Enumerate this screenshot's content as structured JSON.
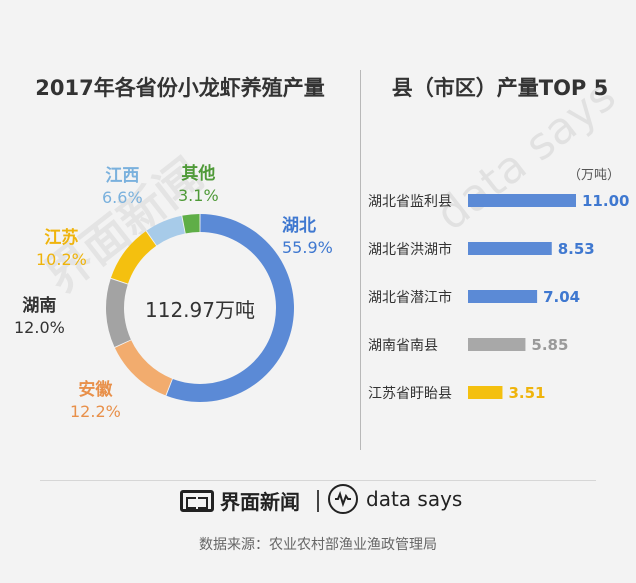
{
  "left": {
    "title": "2017年各省份小龙虾养殖产量"
  },
  "right": {
    "title": "县（市区）产量TOP 5",
    "unit": "（万吨）"
  },
  "donut_total": "112.97万吨",
  "colors": {
    "湖北": "#5b8ad6",
    "安徽": "#f2ac6e",
    "湖南": "#a3a3a3",
    "江苏": "#f4c00f",
    "江西": "#a7cbe9",
    "其他": "#5fae47",
    "bar_yellow": "#f4c00f",
    "bar_gray": "#a8a8a8"
  },
  "chart_data": [
    {
      "type": "pie",
      "title": "2017年各省份小龙虾养殖产量",
      "total_label": "112.97万吨",
      "categories": [
        "湖北",
        "安徽",
        "湖南",
        "江苏",
        "江西",
        "其他"
      ],
      "values": [
        55.9,
        12.2,
        12.0,
        10.2,
        6.6,
        3.1
      ],
      "value_labels": [
        "55.9%",
        "12.2%",
        "12.0%",
        "10.2%",
        "6.6%",
        "3.1%"
      ],
      "label_colors": [
        "#3f78d0",
        "#e8904a",
        "#333333",
        "#efb40c",
        "#7ab1dd",
        "#4f9a38"
      ]
    },
    {
      "type": "bar",
      "orientation": "horizontal",
      "title": "县（市区）产量TOP 5",
      "unit": "（万吨）",
      "categories": [
        "湖北省监利县",
        "湖北省洪湖市",
        "湖北省潜江市",
        "湖南省南县",
        "江苏省盱眙县"
      ],
      "values": [
        11.0,
        8.53,
        7.04,
        5.85,
        3.51
      ],
      "value_labels": [
        "11.00",
        "8.53",
        "7.04",
        "5.85",
        "3.51"
      ],
      "bar_colors": [
        "#5b8ad6",
        "#5b8ad6",
        "#5b8ad6",
        "#a8a8a8",
        "#f4c00f"
      ],
      "value_colors": [
        "#3f78d0",
        "#3f78d0",
        "#3f78d0",
        "#9a9a9a",
        "#efb40c"
      ],
      "xlim": [
        0,
        11
      ]
    }
  ],
  "watermark": {
    "left": "界面新闻",
    "right": "data says"
  },
  "footer": {
    "logo1_text": "界面新闻",
    "logo2_text": "data says",
    "source": "数据来源：农业农村部渔业渔政管理局"
  }
}
